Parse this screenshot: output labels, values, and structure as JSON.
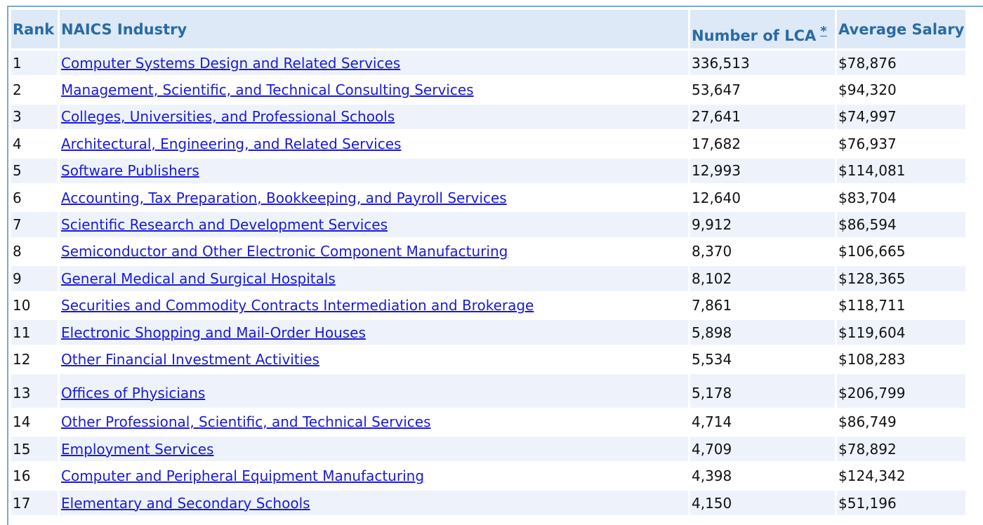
{
  "table": {
    "headers": {
      "rank": "Rank",
      "industry": "NAICS Industry",
      "lca": "Number of LCA",
      "lca_footnote": "*",
      "salary": "Average Salary"
    },
    "rows": [
      {
        "rank": "1",
        "industry": "Computer Systems Design and Related Services",
        "lca": "336,513",
        "salary": "$78,876"
      },
      {
        "rank": "2",
        "industry": "Management, Scientific, and Technical Consulting Services",
        "lca": "53,647",
        "salary": "$94,320"
      },
      {
        "rank": "3",
        "industry": "Colleges, Universities, and Professional Schools",
        "lca": "27,641",
        "salary": "$74,997"
      },
      {
        "rank": "4",
        "industry": "Architectural, Engineering, and Related Services",
        "lca": "17,682",
        "salary": "$76,937"
      },
      {
        "rank": "5",
        "industry": "Software Publishers",
        "lca": "12,993",
        "salary": "$114,081"
      },
      {
        "rank": "6",
        "industry": "Accounting, Tax Preparation, Bookkeeping, and Payroll Services",
        "lca": "12,640",
        "salary": "$83,704"
      },
      {
        "rank": "7",
        "industry": "Scientific Research and Development Services",
        "lca": "9,912",
        "salary": "$86,594"
      },
      {
        "rank": "8",
        "industry": "Semiconductor and Other Electronic Component Manufacturing",
        "lca": "8,370",
        "salary": "$106,665"
      },
      {
        "rank": "9",
        "industry": "General Medical and Surgical Hospitals",
        "lca": "8,102",
        "salary": "$128,365"
      },
      {
        "rank": "10",
        "industry": "Securities and Commodity Contracts Intermediation and Brokerage",
        "lca": "7,861",
        "salary": "$118,711"
      },
      {
        "rank": "11",
        "industry": "Electronic Shopping and Mail-Order Houses",
        "lca": "5,898",
        "salary": "$119,604"
      },
      {
        "rank": "12",
        "industry": "Other Financial Investment Activities",
        "lca": "5,534",
        "salary": "$108,283"
      },
      {
        "rank": "13",
        "industry": "Offices of Physicians",
        "lca": "5,178",
        "salary": "$206,799"
      },
      {
        "rank": "14",
        "industry": "Other Professional, Scientific, and Technical Services",
        "lca": "4,714",
        "salary": "$86,749"
      },
      {
        "rank": "15",
        "industry": "Employment Services",
        "lca": "4,709",
        "salary": "$78,892"
      },
      {
        "rank": "16",
        "industry": "Computer and Peripheral Equipment Manufacturing",
        "lca": "4,398",
        "salary": "$124,342"
      },
      {
        "rank": "17",
        "industry": "Elementary and Secondary Schools",
        "lca": "4,150",
        "salary": "$51,196"
      }
    ]
  }
}
